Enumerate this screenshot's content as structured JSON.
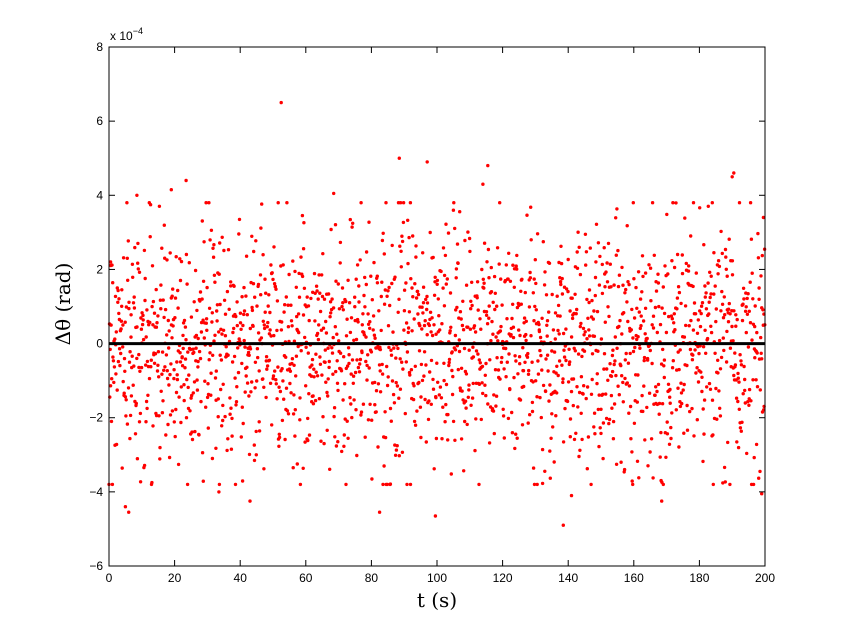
{
  "chart_data": {
    "type": "scatter",
    "title": "",
    "xlabel": "t (s)",
    "ylabel": "Δθ (rad)",
    "y_exponent_label": "x 10",
    "y_exponent_power": "−4",
    "xlim": [
      0,
      200
    ],
    "ylim": [
      -6,
      8
    ],
    "xticks": [
      0,
      20,
      40,
      60,
      80,
      100,
      120,
      140,
      160,
      180,
      200
    ],
    "yticks": [
      -6,
      -4,
      -2,
      0,
      2,
      4,
      6,
      8
    ],
    "ytick_labels": [
      "−6",
      "−4",
      "−2",
      "0",
      "2",
      "4",
      "6",
      "8"
    ],
    "marker_color": "#ff0000",
    "reference_line": {
      "y": 0,
      "color": "#000000"
    },
    "grid": false,
    "series": [
      {
        "n_points": 2000,
        "x_range": [
          0,
          200
        ],
        "std": 1.6,
        "outliers": [
          {
            "x": 52.5,
            "y": 6.5
          },
          {
            "x": 88.5,
            "y": 5.0
          },
          {
            "x": 97.0,
            "y": 4.9
          },
          {
            "x": 115.5,
            "y": 4.8
          },
          {
            "x": 190.5,
            "y": 4.6
          },
          {
            "x": 190.0,
            "y": 4.5
          },
          {
            "x": 23.5,
            "y": 4.4
          },
          {
            "x": 114.0,
            "y": 4.3
          },
          {
            "x": 19.0,
            "y": 4.15
          },
          {
            "x": 8.5,
            "y": 4.0
          },
          {
            "x": 68.5,
            "y": 4.05
          },
          {
            "x": 5.0,
            "y": -4.4
          },
          {
            "x": 6.0,
            "y": -4.55
          },
          {
            "x": 43.0,
            "y": -4.25
          },
          {
            "x": 82.5,
            "y": -4.55
          },
          {
            "x": 99.5,
            "y": -4.65
          },
          {
            "x": 138.5,
            "y": -4.9
          },
          {
            "x": 168.5,
            "y": -4.25
          },
          {
            "x": 199.0,
            "y": -4.05
          },
          {
            "x": 141.0,
            "y": -4.1
          },
          {
            "x": 33.5,
            "y": -4.0
          },
          {
            "x": 199.5,
            "y": 3.4
          },
          {
            "x": 0.5,
            "y": 2.2
          }
        ]
      }
    ]
  }
}
